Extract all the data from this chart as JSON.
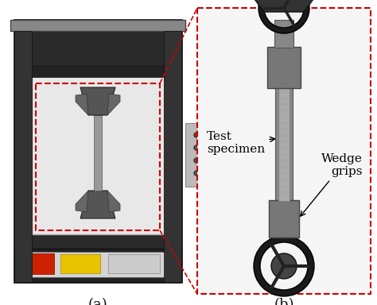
{
  "label_a": "(a)",
  "label_b": "(b)",
  "annotation_1": "Test\nspecimen",
  "annotation_2": "Wedge\ngrips",
  "background_color": "#ffffff",
  "dashed_box_color": "#cc0000",
  "arrow_color": "#000000",
  "label_fontsize": 13,
  "annotation_fontsize": 11,
  "fig_width": 4.74,
  "fig_height": 3.84,
  "dpi": 100
}
